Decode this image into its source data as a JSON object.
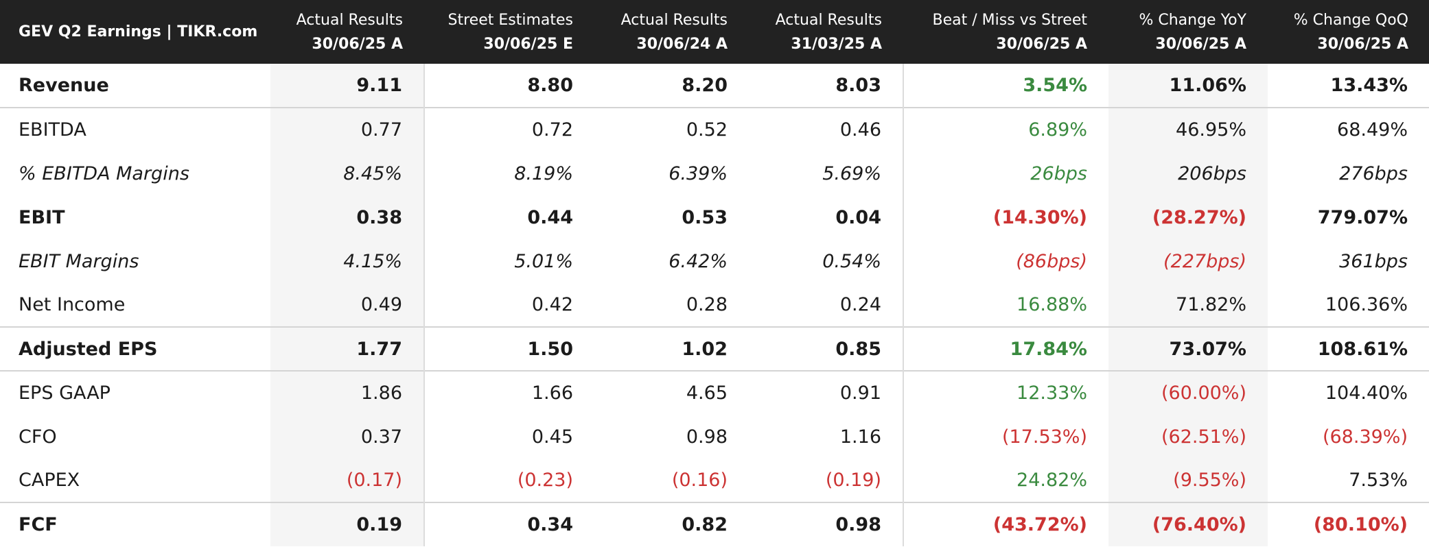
{
  "table": {
    "title": "GEV Q2 Earnings | TIKR.com",
    "columns": [
      {
        "top": "Actual Results",
        "sub": "30/06/25 A"
      },
      {
        "top": "Street Estimates",
        "sub": "30/06/25 E"
      },
      {
        "top": "Actual Results",
        "sub": "30/06/24 A"
      },
      {
        "top": "Actual Results",
        "sub": "31/03/25 A"
      },
      {
        "top": "Beat / Miss vs Street",
        "sub": "30/06/25 A"
      },
      {
        "top": "% Change YoY",
        "sub": "30/06/25 A"
      },
      {
        "top": "% Change QoQ",
        "sub": "30/06/25 A"
      }
    ],
    "colors": {
      "positive": "#3a8a3f",
      "negative": "#cc3333",
      "header_bg": "#222222"
    }
  },
  "chart_data": {
    "type": "table",
    "title": "GEV Q2 Earnings | TIKR.com",
    "columns": [
      "Actual Results 30/06/25 A",
      "Street Estimates 30/06/25 E",
      "Actual Results 30/06/24 A",
      "Actual Results 31/03/25 A",
      "Beat / Miss vs Street 30/06/25 A",
      "% Change YoY 30/06/25 A",
      "% Change QoQ 30/06/25 A"
    ],
    "rows": [
      {
        "label": "Revenue",
        "cells": [
          "9.11",
          "8.80",
          "8.20",
          "8.03",
          "3.54%",
          "11.06%",
          "13.43%"
        ]
      },
      {
        "label": "EBITDA",
        "cells": [
          "0.77",
          "0.72",
          "0.52",
          "0.46",
          "6.89%",
          "46.95%",
          "68.49%"
        ]
      },
      {
        "label": "% EBITDA Margins",
        "cells": [
          "8.45%",
          "8.19%",
          "6.39%",
          "5.69%",
          "26bps",
          "206bps",
          "276bps"
        ]
      },
      {
        "label": "EBIT",
        "cells": [
          "0.38",
          "0.44",
          "0.53",
          "0.04",
          "(14.30%)",
          "(28.27%)",
          "779.07%"
        ]
      },
      {
        "label": "EBIT Margins",
        "cells": [
          "4.15%",
          "5.01%",
          "6.42%",
          "0.54%",
          "(86bps)",
          "(227bps)",
          "361bps"
        ]
      },
      {
        "label": "Net Income",
        "cells": [
          "0.49",
          "0.42",
          "0.28",
          "0.24",
          "16.88%",
          "71.82%",
          "106.36%"
        ]
      },
      {
        "label": "Adjusted EPS",
        "cells": [
          "1.77",
          "1.50",
          "1.02",
          "0.85",
          "17.84%",
          "73.07%",
          "108.61%"
        ]
      },
      {
        "label": "EPS GAAP",
        "cells": [
          "1.86",
          "1.66",
          "4.65",
          "0.91",
          "12.33%",
          "(60.00%)",
          "104.40%"
        ]
      },
      {
        "label": "CFO",
        "cells": [
          "0.37",
          "0.45",
          "0.98",
          "1.16",
          "(17.53%)",
          "(62.51%)",
          "(68.39%)"
        ]
      },
      {
        "label": "CAPEX",
        "cells": [
          "(0.17)",
          "(0.23)",
          "(0.16)",
          "(0.19)",
          "24.82%",
          "(9.55%)",
          "7.53%"
        ]
      },
      {
        "label": "FCF",
        "cells": [
          "0.19",
          "0.34",
          "0.82",
          "0.98",
          "(43.72%)",
          "(76.40%)",
          "(80.10%)"
        ]
      }
    ]
  }
}
